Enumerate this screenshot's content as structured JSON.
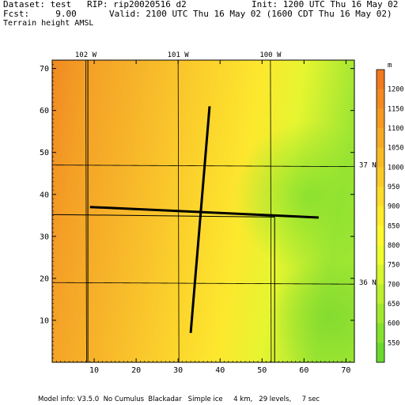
{
  "header": {
    "dataset_line": "Dataset: test   RIP: rip20020516 d2",
    "fcst_line": "Fcst:     9.00",
    "field_line": "Terrain height AMSL",
    "init_line": "Init: 1200 UTC Thu 16 May 02",
    "valid_line": "Valid: 2100 UTC Thu 16 May 02 (1600 CDT Thu 16 May 02)"
  },
  "footer": {
    "model_info": "Model info: V3.5.0  No Cumulus  Blackadar   Simple ice     4 km,   29 levels,     7 sec"
  },
  "chart_data": {
    "type": "heatmap",
    "field": "Terrain height AMSL",
    "units": "m",
    "grid_range_x": [
      0,
      72
    ],
    "grid_range_y": [
      0,
      72
    ],
    "x_ticks": [
      10,
      20,
      30,
      40,
      50,
      60,
      70
    ],
    "y_ticks": [
      10,
      20,
      30,
      40,
      50,
      60,
      70
    ],
    "longitude_labels": [
      {
        "label": "102 W",
        "x": 8
      },
      {
        "label": "101 W",
        "x": 30
      },
      {
        "label": "100 W",
        "x": 52
      }
    ],
    "latitude_labels": [
      {
        "label": "37 N",
        "y": 47
      },
      {
        "label": "36 N",
        "y": 19
      }
    ],
    "colorbar": {
      "unit_label": "m",
      "levels": [
        {
          "label": "1200",
          "color": "#f07a1e"
        },
        {
          "label": "1150",
          "color": "#f28a20"
        },
        {
          "label": "1100",
          "color": "#f49a22"
        },
        {
          "label": "1050",
          "color": "#f6aa24"
        },
        {
          "label": "1000",
          "color": "#f8ba26"
        },
        {
          "label": "950",
          "color": "#facb28"
        },
        {
          "label": "900",
          "color": "#fcdb2a"
        },
        {
          "label": "850",
          "color": "#fdeb2c"
        },
        {
          "label": "800",
          "color": "#fef92e"
        },
        {
          "label": "750",
          "color": "#eefc2e"
        },
        {
          "label": "700",
          "color": "#d6f62e"
        },
        {
          "label": "650",
          "color": "#bcef2e"
        },
        {
          "label": "600",
          "color": "#a2e82e"
        },
        {
          "label": "550",
          "color": "#86e12e"
        },
        {
          "label": "",
          "color": "#6ad92e"
        }
      ]
    },
    "cross_section_lines": [
      {
        "name": "north-south section",
        "from": [
          33,
          7
        ],
        "to": [
          37.5,
          61
        ]
      },
      {
        "name": "east-west section",
        "from": [
          9,
          37
        ],
        "to": [
          63.5,
          34.5
        ]
      }
    ]
  }
}
